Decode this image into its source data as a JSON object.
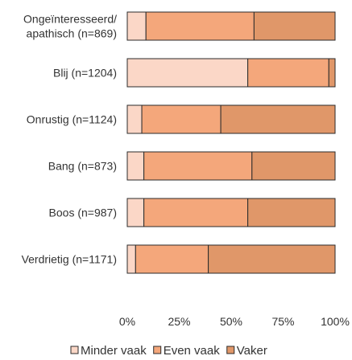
{
  "chart_data": {
    "type": "bar",
    "orientation": "horizontal",
    "stacked": true,
    "percent": true,
    "categories": [
      "Ongeïnteresseerd/ apathisch (n=869)",
      "Blij (n=1204)",
      "Onrustig (n=1124)",
      "Bang (n=873)",
      "Boos (n=987)",
      "Verdrietig (n=1171)"
    ],
    "category_lines": [
      [
        "Ongeïnteresseerd/",
        "apathisch (n=869)"
      ],
      [
        "Blij (n=1204)"
      ],
      [
        "Onrustig (n=1124)"
      ],
      [
        "Bang (n=873)"
      ],
      [
        "Boos (n=987)"
      ],
      [
        "Verdrietig (n=1171)"
      ]
    ],
    "series": [
      {
        "name": "Minder vaak",
        "color": "#fbd7c7",
        "values": [
          9,
          58,
          7,
          8,
          8,
          4
        ]
      },
      {
        "name": "Even vaak",
        "color": "#f4a77b",
        "values": [
          52,
          39,
          38,
          52,
          50,
          35
        ]
      },
      {
        "name": "Vaker",
        "color": "#e09769",
        "values": [
          39,
          3,
          55,
          40,
          42,
          61
        ]
      }
    ],
    "xlim": [
      0,
      100
    ],
    "x_ticks": [
      "0%",
      "25%",
      "50%",
      "75%",
      "100%"
    ],
    "legend_position": "bottom",
    "bar_edge_color": "#2b2b2b"
  }
}
